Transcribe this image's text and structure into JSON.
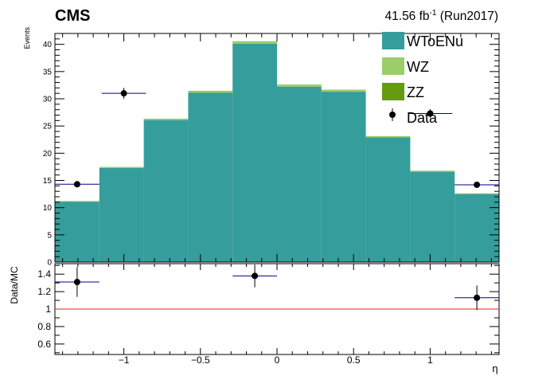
{
  "header": {
    "experiment": "CMS",
    "lumi_value": "41.56 fb",
    "lumi_exp": "-1",
    "lumi_run": " (Run2017)"
  },
  "colors": {
    "WToENu": "#359d9b",
    "WZ": "#9ccd6a",
    "ZZ": "#649b0f",
    "data": "#000000",
    "data_xerr": "#00008b",
    "ratio_line": "#e02020"
  },
  "chart_data": [
    {
      "type": "bar",
      "subtype": "stacked-histogram",
      "ylabel": "Events",
      "xlim": [
        -1.45,
        1.45
      ],
      "ylim": [
        0,
        42
      ],
      "yticks": [
        0,
        5,
        10,
        15,
        20,
        25,
        30,
        35,
        40
      ],
      "bin_edges": [
        -1.45,
        -1.16,
        -0.87,
        -0.58,
        -0.29,
        0.0,
        0.29,
        0.58,
        0.87,
        1.16,
        1.45
      ],
      "series": [
        {
          "name": "WToENu",
          "values": [
            11.1,
            17.3,
            26.1,
            31.1,
            40.1,
            32.2,
            31.3,
            22.9,
            16.6,
            12.5
          ]
        },
        {
          "name": "WZ",
          "values": [
            0.1,
            0.15,
            0.2,
            0.3,
            0.4,
            0.35,
            0.3,
            0.2,
            0.15,
            0.1
          ]
        },
        {
          "name": "ZZ",
          "values": [
            0.02,
            0.03,
            0.04,
            0.05,
            0.06,
            0.05,
            0.05,
            0.04,
            0.03,
            0.02
          ]
        }
      ],
      "data_points": [
        {
          "x": -1.305,
          "xerr": 0.145,
          "y": 14.3,
          "yerr": 0.4
        },
        {
          "x": -1.0,
          "xerr": 0.145,
          "y": 31.0,
          "yerr": 1.0
        },
        {
          "x": 1.0,
          "xerr": 0.145,
          "y": 27.3,
          "yerr": 0.8
        },
        {
          "x": 1.305,
          "xerr": 0.145,
          "y": 14.2,
          "yerr": 0.4
        }
      ],
      "legend": {
        "position": "top-right",
        "entries": [
          {
            "label": "WToENu",
            "style": "fill"
          },
          {
            "label": "WZ",
            "style": "fill"
          },
          {
            "label": "ZZ",
            "style": "fill"
          },
          {
            "label": "Data",
            "style": "marker"
          }
        ]
      }
    },
    {
      "type": "scatter",
      "subtype": "ratio",
      "ylabel": "Data/MC",
      "xlabel": "η",
      "xlim": [
        -1.45,
        1.45
      ],
      "ylim": [
        0.48,
        1.52
      ],
      "xticks": [
        -1,
        -0.5,
        0,
        0.5,
        1
      ],
      "xtick_labels": [
        "−1",
        "−0.5",
        "0",
        "0.5",
        "1"
      ],
      "yticks": [
        0.6,
        0.8,
        1,
        1.2,
        1.4
      ],
      "yticks_labels": [
        "0.6",
        "0.8",
        "1",
        "1.2",
        "1.4"
      ],
      "reference_line": 1,
      "points": [
        {
          "x": -1.305,
          "xerr": 0.145,
          "y": 1.31,
          "yerr": 0.17
        },
        {
          "x": -0.145,
          "xerr": 0.145,
          "y": 1.38,
          "yerr": 0.13
        },
        {
          "x": 1.305,
          "xerr": 0.145,
          "y": 1.13,
          "yerr": 0.14
        }
      ]
    }
  ]
}
